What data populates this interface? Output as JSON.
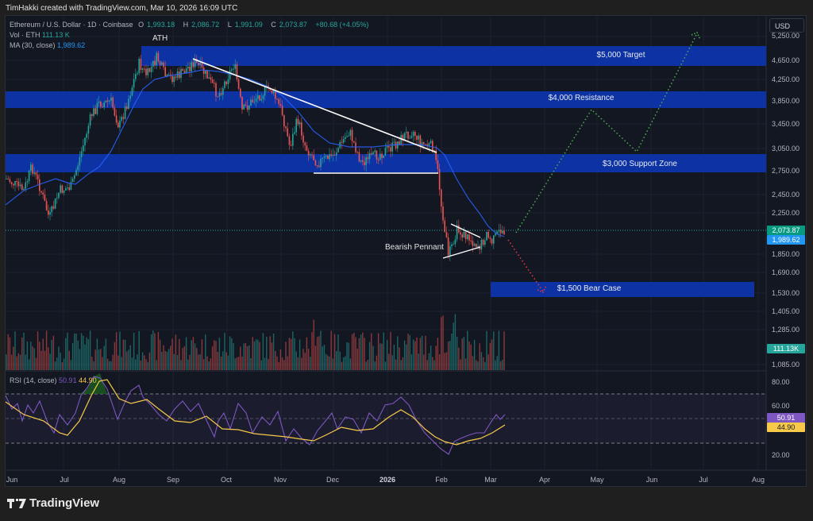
{
  "credit": "TimHakki created with TradingView.com, Mar 10, 2026 16:09 UTC",
  "symbol": {
    "title": "Ethereum / U.S. Dollar · 1D · Coinbase",
    "open_label": "O",
    "open": "1,993.18",
    "high_label": "H",
    "high": "2,086.72",
    "low_label": "L",
    "low": "1,991.09",
    "close_label": "C",
    "close": "2,073.87",
    "change": "+80.68 (+4.05%)"
  },
  "volume_legend": {
    "label": "Vol · ETH",
    "value": "111.13 K"
  },
  "ma_legend": {
    "label": "MA (30, close)",
    "value": "1,989.62"
  },
  "currency_button": "USD",
  "price_axis": [
    "5,250.00",
    "4,650.00",
    "4,250.00",
    "3,850.00",
    "3,450.00",
    "3,050.00",
    "2,750.00",
    "2,450.00",
    "2,250.00",
    "1,850.00",
    "1,690.00",
    "1,530.00",
    "1,405.00",
    "1,285.00",
    "1,085.00"
  ],
  "price_tags": {
    "last_price": "2,073.87",
    "ma_value": "1,989.62",
    "volume": "111.13K",
    "rsi": "50.91",
    "rsi_ma": "44.90"
  },
  "rsi_axis": [
    "80.00",
    "60.00",
    "20.00"
  ],
  "rsi_legend": {
    "label": "RSI (14, close)",
    "rsi": "50.91",
    "rsi_ma": "44.90"
  },
  "time_axis": [
    "Jun",
    "Jul",
    "Aug",
    "Sep",
    "Oct",
    "Nov",
    "Dec",
    "2026",
    "Feb",
    "Mar",
    "Apr",
    "May",
    "Jun",
    "Jul",
    "Aug"
  ],
  "zones": [
    {
      "label": "$5,000 Target"
    },
    {
      "label": "$4,000 Resistance"
    },
    {
      "label": "$3,000 Support Zone"
    },
    {
      "label": "$1,500 Bear Case"
    }
  ],
  "annotations": {
    "ath": "ATH",
    "pennant": "Bearish Pennant"
  },
  "brand": "TradingView",
  "colors": {
    "up": "#26a69a",
    "down": "#ef5350",
    "ma": "#2962ff",
    "zone": "#0d32a3",
    "rsi": "#7e57c2",
    "rsi_ma": "#f7c948",
    "bull_path": "#4caf50",
    "bear_path": "#f23645"
  },
  "chart_data": {
    "type": "candlestick",
    "title": "Ethereum / U.S. Dollar · 1D · Coinbase",
    "x_range": [
      "Jun 2025",
      "Aug 2026"
    ],
    "y_range": [
      1085,
      5250
    ],
    "ohlc_last": {
      "open": 1993.18,
      "high": 2086.72,
      "low": 1991.09,
      "close": 2073.87,
      "change": 80.68,
      "change_pct": 4.05
    },
    "approx_monthly_close": {
      "months": [
        "Jun",
        "Jul",
        "Aug",
        "Sep",
        "Oct",
        "Nov",
        "Dec",
        "Jan",
        "Feb",
        "Mar"
      ],
      "close": [
        2500,
        3800,
        4400,
        4200,
        4100,
        3000,
        2950,
        3000,
        1950,
        2074
      ]
    },
    "ma30_last": 1989.62,
    "volume_last": "111.13K",
    "zones": [
      {
        "label": "$5,000 Target",
        "low": 4550,
        "high": 5050
      },
      {
        "label": "$4,000 Resistance",
        "low": 3750,
        "high": 4050
      },
      {
        "label": "$3,000 Support Zone",
        "low": 2700,
        "high": 3000
      },
      {
        "label": "$1,500 Bear Case",
        "low": 1450,
        "high": 1600
      }
    ],
    "projections": [
      {
        "name": "bull",
        "points": [
          [
            "Mar",
            2074
          ],
          [
            "May",
            3800
          ],
          [
            "Jun",
            3050
          ],
          [
            "Jul",
            5300
          ]
        ]
      },
      {
        "name": "bear",
        "points": [
          [
            "Mar",
            2074
          ],
          [
            "Apr",
            1530
          ]
        ]
      }
    ],
    "rsi": {
      "period": 14,
      "value": 50.91,
      "ma": 44.9,
      "levels": [
        30,
        50,
        70
      ],
      "ylim": [
        20,
        80
      ]
    }
  }
}
